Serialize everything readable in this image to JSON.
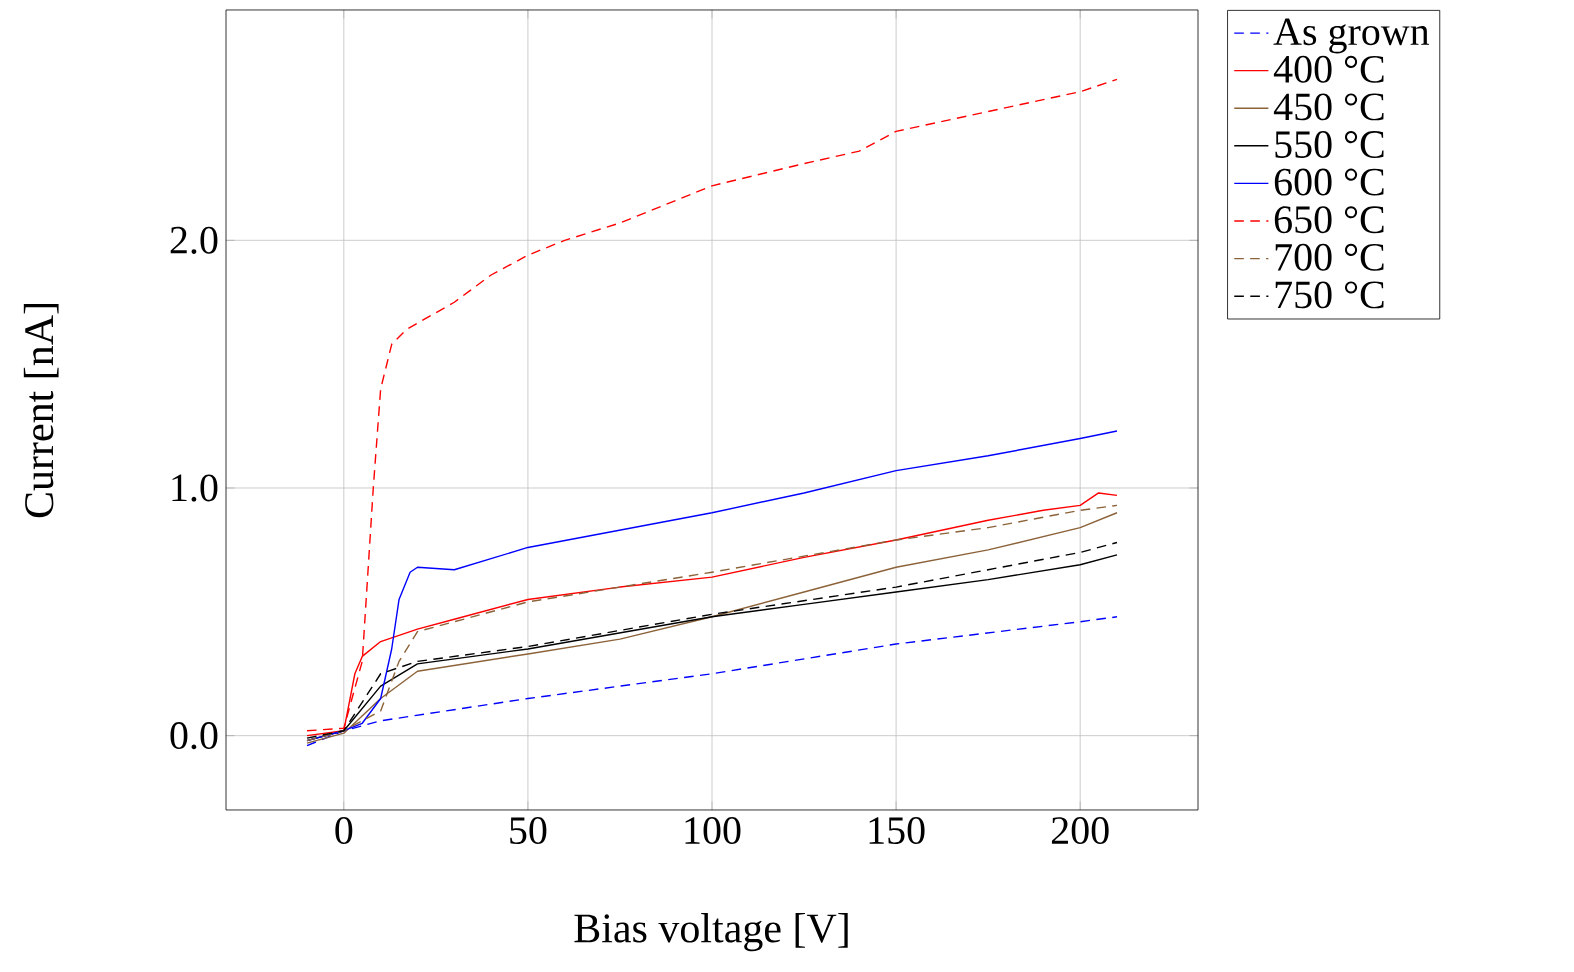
{
  "chart_data": {
    "type": "line",
    "xlabel": "Bias voltage [V]",
    "ylabel": "Current [nA]",
    "xlim": [
      -32,
      232
    ],
    "ylim": [
      -0.3,
      2.93
    ],
    "xticks": [
      0,
      50,
      100,
      150,
      200
    ],
    "yticks": [
      {
        "value": 0,
        "label": "0.0"
      },
      {
        "value": 1,
        "label": "1.0"
      },
      {
        "value": 2,
        "label": "2.0"
      }
    ],
    "grid": true,
    "legend": "right",
    "series": [
      {
        "name": "As grown",
        "color": "#0000ff",
        "line_style": "dashed",
        "x": [
          -10,
          0,
          10,
          50,
          100,
          150,
          200,
          210
        ],
        "values": [
          -0.04,
          0.02,
          0.06,
          0.15,
          0.25,
          0.37,
          0.46,
          0.48
        ]
      },
      {
        "name": "400 °C",
        "color": "#ff0000",
        "line_style": "solid",
        "x": [
          -10,
          0,
          3,
          5,
          10,
          20,
          30,
          50,
          75,
          100,
          125,
          150,
          175,
          190,
          200,
          205,
          210
        ],
        "values": [
          0.0,
          0.02,
          0.25,
          0.32,
          0.38,
          0.43,
          0.47,
          0.55,
          0.6,
          0.64,
          0.72,
          0.79,
          0.87,
          0.91,
          0.93,
          0.98,
          0.97
        ]
      },
      {
        "name": "450 °C",
        "color": "#8c6239",
        "line_style": "solid",
        "x": [
          -10,
          0,
          10,
          20,
          50,
          75,
          100,
          125,
          150,
          175,
          200,
          210
        ],
        "values": [
          -0.03,
          0.01,
          0.15,
          0.26,
          0.33,
          0.39,
          0.48,
          0.58,
          0.68,
          0.75,
          0.84,
          0.9
        ]
      },
      {
        "name": "550 °C",
        "color": "#000000",
        "line_style": "solid",
        "x": [
          -10,
          0,
          10,
          20,
          50,
          100,
          125,
          150,
          175,
          200,
          210
        ],
        "values": [
          -0.02,
          0.02,
          0.2,
          0.29,
          0.35,
          0.48,
          0.53,
          0.58,
          0.63,
          0.69,
          0.73
        ]
      },
      {
        "name": "600 °C",
        "color": "#0000ff",
        "line_style": "solid",
        "x": [
          -10,
          0,
          5,
          10,
          13,
          15,
          18,
          20,
          30,
          50,
          75,
          100,
          125,
          150,
          175,
          200,
          210
        ],
        "values": [
          -0.02,
          0.02,
          0.05,
          0.15,
          0.35,
          0.55,
          0.66,
          0.68,
          0.67,
          0.76,
          0.83,
          0.9,
          0.98,
          1.07,
          1.13,
          1.2,
          1.23
        ]
      },
      {
        "name": "650 °C",
        "color": "#ff0000",
        "line_style": "dashed",
        "x": [
          -10,
          0,
          5,
          8,
          10,
          13,
          17,
          30,
          40,
          50,
          60,
          75,
          100,
          125,
          140,
          150,
          175,
          200,
          210
        ],
        "values": [
          0.02,
          0.03,
          0.3,
          1.0,
          1.4,
          1.58,
          1.64,
          1.75,
          1.86,
          1.94,
          2.0,
          2.07,
          2.22,
          2.31,
          2.36,
          2.44,
          2.52,
          2.6,
          2.65
        ]
      },
      {
        "name": "700 °C",
        "color": "#8c6239",
        "line_style": "dashed",
        "x": [
          -10,
          0,
          10,
          15,
          20,
          50,
          100,
          150,
          175,
          200,
          210
        ],
        "values": [
          -0.02,
          0.02,
          0.1,
          0.3,
          0.42,
          0.54,
          0.66,
          0.79,
          0.84,
          0.91,
          0.93
        ]
      },
      {
        "name": "750 °C",
        "color": "#000000",
        "line_style": "dashed",
        "x": [
          -10,
          0,
          10,
          20,
          50,
          100,
          150,
          200,
          210
        ],
        "values": [
          -0.01,
          0.02,
          0.25,
          0.3,
          0.36,
          0.49,
          0.6,
          0.74,
          0.78
        ]
      }
    ]
  }
}
